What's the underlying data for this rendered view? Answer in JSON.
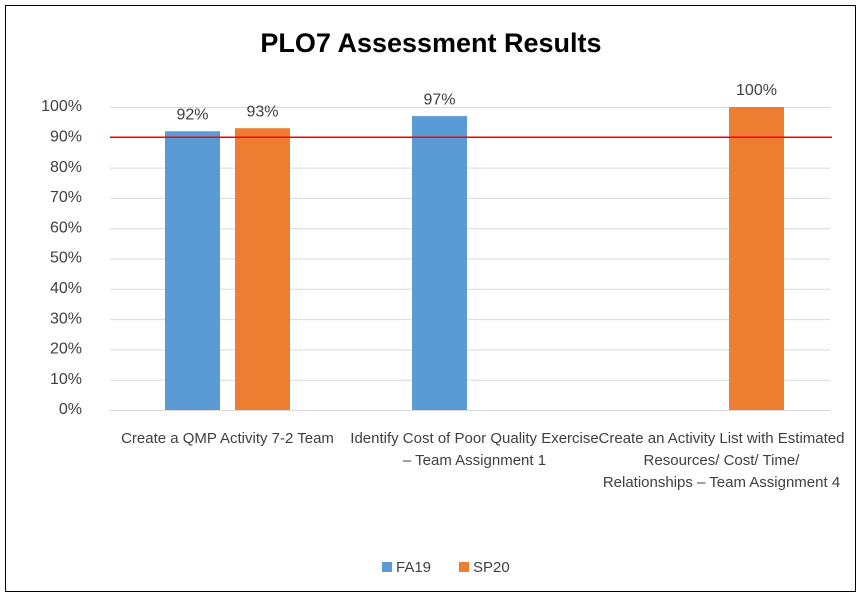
{
  "chart_data": {
    "type": "bar",
    "title": "PLO7 Assessment Results",
    "categories": [
      "Create a QMP Activity 7-2 Team",
      "Identify Cost of Poor Quality Exercise – Team Assignment 1",
      "Create an Activity List with Estimated Resources/ Cost/ Time/ Relationships – Team Assignment 4"
    ],
    "series": [
      {
        "name": "FA19",
        "color": "#5b9bd5",
        "values": [
          92,
          97,
          null
        ],
        "value_labels": [
          "92%",
          "97%",
          null
        ]
      },
      {
        "name": "SP20",
        "color": "#ed7d31",
        "values": [
          93,
          null,
          100
        ],
        "value_labels": [
          "93%",
          null,
          "100%"
        ]
      }
    ],
    "ylim": [
      0,
      100
    ],
    "yticks": [
      {
        "value": 0,
        "label": "0%"
      },
      {
        "value": 10,
        "label": "10%"
      },
      {
        "value": 20,
        "label": "20%"
      },
      {
        "value": 30,
        "label": "30%"
      },
      {
        "value": 40,
        "label": "40%"
      },
      {
        "value": 50,
        "label": "50%"
      },
      {
        "value": 60,
        "label": "60%"
      },
      {
        "value": 70,
        "label": "70%"
      },
      {
        "value": 80,
        "label": "80%"
      },
      {
        "value": 90,
        "label": "90%"
      },
      {
        "value": 100,
        "label": "100%"
      }
    ],
    "grid": true,
    "reference_line": {
      "value": 90,
      "color": "#ff0000"
    },
    "legend": "bottom"
  }
}
